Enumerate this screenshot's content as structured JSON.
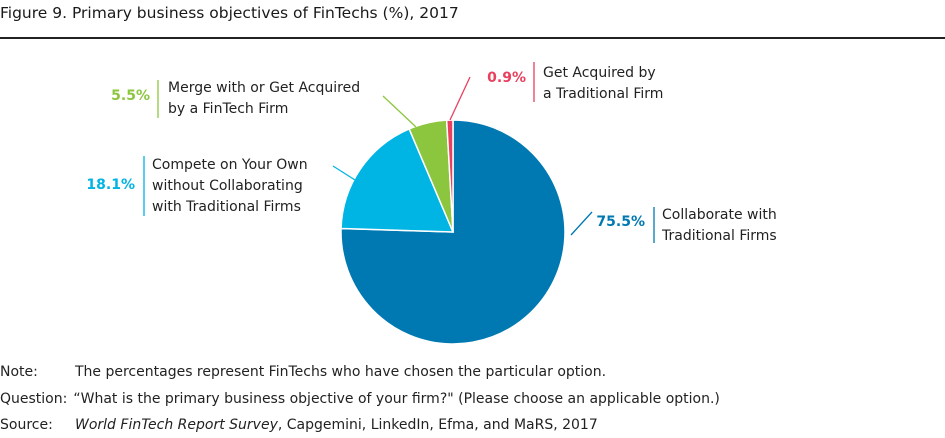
{
  "title": "Figure 9. Primary business objectives of FinTechs (%), 2017",
  "chart_data": {
    "type": "pie",
    "slices": [
      {
        "label_lines": [
          "Collaborate with",
          "Traditional Firms"
        ],
        "pct_label": "75.5%",
        "value": 75.5,
        "color": "#0079B3"
      },
      {
        "label_lines": [
          "Compete on Your Own",
          "without Collaborating",
          "with Traditional Firms"
        ],
        "pct_label": "18.1%",
        "value": 18.1,
        "color": "#00B4E4"
      },
      {
        "label_lines": [
          "Merge with or Get Acquired",
          "by a FinTech Firm"
        ],
        "pct_label": "5.5%",
        "value": 5.5,
        "color": "#8CC63F"
      },
      {
        "label_lines": [
          "Get Acquired by",
          "a Traditional Firm"
        ],
        "pct_label": "0.9%",
        "value": 0.9,
        "color": "#E8405E"
      }
    ]
  },
  "notes": {
    "note_key": "Note:",
    "note_text": "The percentages represent FinTechs who have chosen the particular option.",
    "question_key": "Question:",
    "question_text": "“What is the primary business objective of your firm?\" (Please choose an applicable option.)",
    "source_key": "Source:",
    "source_italic": "World FinTech Report Survey",
    "source_rest": ", Capgemini, LinkedIn, Efma, and MaRS, 2017"
  }
}
